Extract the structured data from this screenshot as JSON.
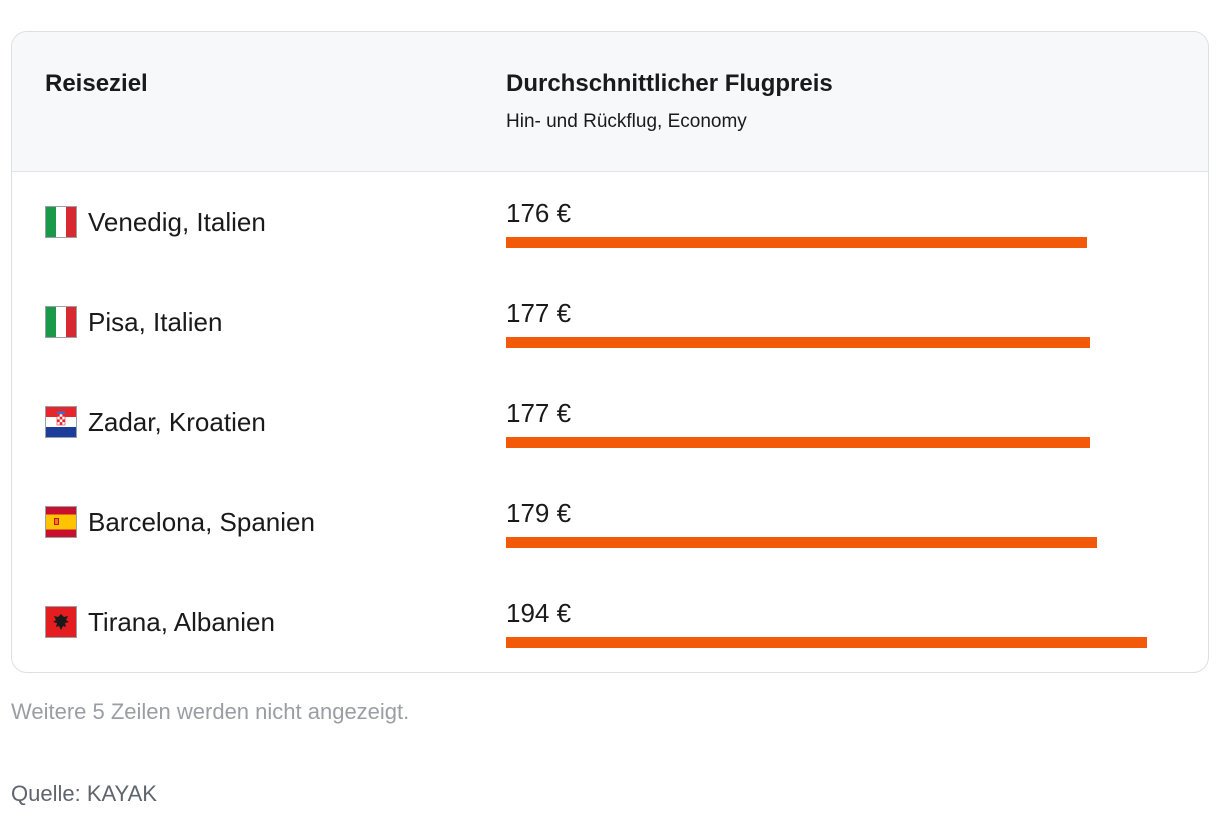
{
  "header": {
    "destination_label": "Reiseziel",
    "price_label": "Durchschnittlicher Flugpreis",
    "price_sublabel": "Hin- und Rückflug, Economy"
  },
  "chart_data": {
    "type": "bar",
    "orientation": "horizontal",
    "categories": [
      "Venedig, Italien",
      "Pisa, Italien",
      "Zadar, Kroatien",
      "Barcelona, Spanien",
      "Tirana, Albanien"
    ],
    "values": [
      176,
      177,
      177,
      179,
      194
    ],
    "value_labels": [
      "176 €",
      "177 €",
      "177 €",
      "179 €",
      "194 €"
    ],
    "flags": [
      "italy-flag",
      "italy-flag",
      "croatia-flag",
      "spain-flag",
      "albania-flag"
    ],
    "bar_color": "#f25a0a",
    "xlim": [
      0,
      212
    ]
  },
  "footer": {
    "more_rows_note": "Weitere 5 Zeilen werden nicht angezeigt.",
    "source": "Quelle: KAYAK"
  }
}
